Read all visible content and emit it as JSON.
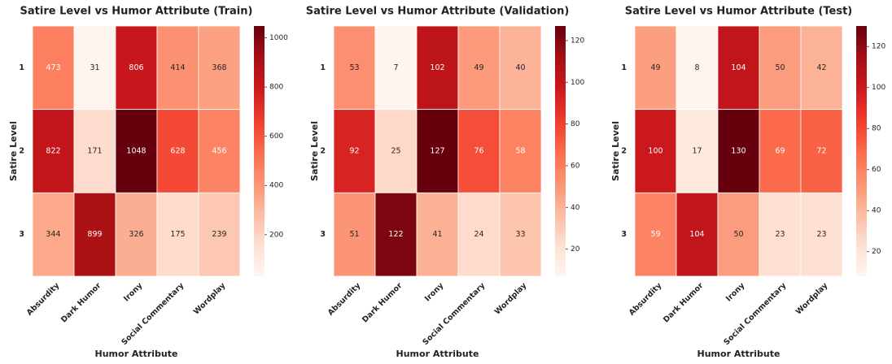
{
  "chart_data": [
    {
      "type": "heatmap",
      "title": "Satire Level vs Humor Attribute (Train)",
      "xlabel": "Humor Attribute",
      "ylabel": "Satire Level",
      "x": [
        "Absurdity",
        "Dark Humor",
        "Irony",
        "Social Commentary",
        "Wordplay"
      ],
      "y": [
        "1",
        "2",
        "3"
      ],
      "values": [
        [
          473,
          31,
          806,
          414,
          368
        ],
        [
          822,
          171,
          1048,
          628,
          456
        ],
        [
          344,
          899,
          326,
          175,
          239
        ]
      ],
      "colormap": "Reds",
      "clim": [
        31,
        1048
      ],
      "cticks": [
        200,
        400,
        600,
        800,
        1000
      ]
    },
    {
      "type": "heatmap",
      "title": "Satire Level vs Humor Attribute (Validation)",
      "xlabel": "Humor Attribute",
      "ylabel": "Satire Level",
      "x": [
        "Absurdity",
        "Dark Humor",
        "Irony",
        "Social Commentary",
        "Wordplay"
      ],
      "y": [
        "1",
        "2",
        "3"
      ],
      "values": [
        [
          53,
          7,
          102,
          49,
          40
        ],
        [
          92,
          25,
          127,
          76,
          58
        ],
        [
          51,
          122,
          41,
          24,
          33
        ]
      ],
      "colormap": "Reds",
      "clim": [
        7,
        127
      ],
      "cticks": [
        20,
        40,
        60,
        80,
        100,
        120
      ]
    },
    {
      "type": "heatmap",
      "title": "Satire Level vs Humor Attribute (Test)",
      "xlabel": "Humor Attribute",
      "ylabel": "Satire Level",
      "x": [
        "Absurdity",
        "Dark Humor",
        "Irony",
        "Social Commentary",
        "Wordplay"
      ],
      "y": [
        "1",
        "2",
        "3"
      ],
      "values": [
        [
          49,
          8,
          104,
          50,
          42
        ],
        [
          100,
          17,
          130,
          69,
          72
        ],
        [
          59,
          104,
          50,
          23,
          23
        ]
      ],
      "colormap": "Reds",
      "clim": [
        8,
        130
      ],
      "cticks": [
        20,
        40,
        60,
        80,
        100,
        120
      ]
    }
  ]
}
